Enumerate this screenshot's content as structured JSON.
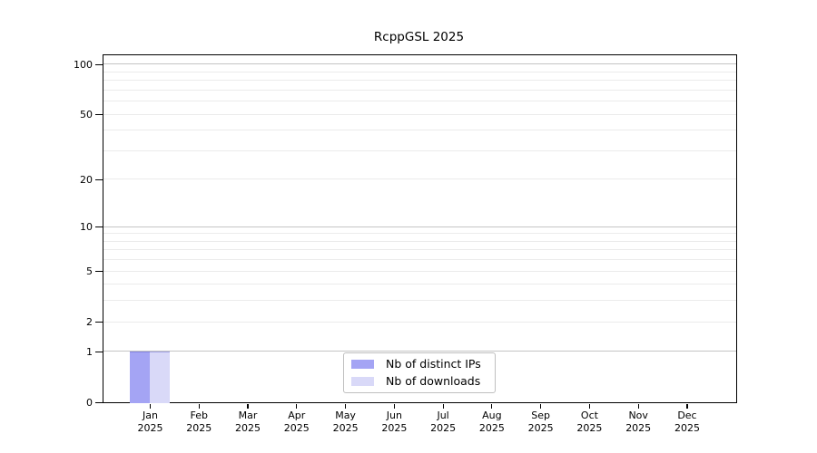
{
  "chart_data": {
    "type": "bar",
    "title": "RcppGSL 2025",
    "categories": [
      "Jan",
      "Feb",
      "Mar",
      "Apr",
      "May",
      "Jun",
      "Jul",
      "Aug",
      "Sep",
      "Oct",
      "Nov",
      "Dec"
    ],
    "category_year": "2025",
    "series": [
      {
        "name": "Nb of distinct IPs",
        "color": "#a4a4f4",
        "values": [
          1,
          0,
          0,
          0,
          0,
          0,
          0,
          0,
          0,
          0,
          0,
          0
        ]
      },
      {
        "name": "Nb of downloads",
        "color": "#d9d9f8",
        "values": [
          1,
          0,
          0,
          0,
          0,
          0,
          0,
          0,
          0,
          0,
          0,
          0
        ]
      }
    ],
    "xlabel": "",
    "ylabel": "",
    "y_axis": {
      "scale": "log1p",
      "ylim": [
        0,
        113
      ],
      "tick_values": [
        0,
        1,
        2,
        5,
        10,
        20,
        50,
        100
      ],
      "major_grid_values": [
        1,
        10,
        100
      ],
      "minor_grid_values": [
        2,
        3,
        4,
        5,
        6,
        7,
        8,
        9,
        20,
        30,
        40,
        50,
        60,
        70,
        80,
        90
      ],
      "major_grid_color": "#c4c4c4",
      "minor_grid_color": "#ebebeb"
    },
    "grid": true,
    "legend_position": "bottom-center",
    "frame_color": "#000000",
    "background_color": "#ffffff"
  }
}
